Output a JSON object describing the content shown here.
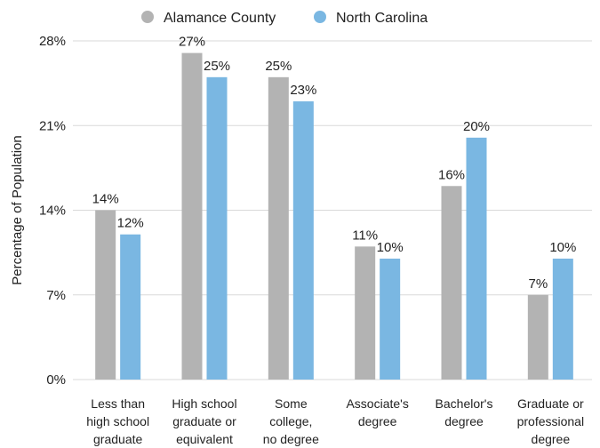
{
  "chart_data": {
    "type": "bar",
    "ylabel": "Percentage of Population",
    "ylim": [
      0,
      28
    ],
    "yticks": [
      0,
      7,
      14,
      21,
      28
    ],
    "ytick_labels": [
      "0%",
      "7%",
      "14%",
      "21%",
      "28%"
    ],
    "grid": true,
    "legend_position": "top-center",
    "categories": [
      [
        "Less than",
        "high school",
        "graduate"
      ],
      [
        "High school",
        "graduate or",
        "equivalent"
      ],
      [
        "Some",
        "college,",
        "no degree"
      ],
      [
        "Associate's",
        "degree"
      ],
      [
        "Bachelor's",
        "degree"
      ],
      [
        "Graduate or",
        "professional",
        "degree"
      ]
    ],
    "series": [
      {
        "name": "Alamance County",
        "color": "#b3b3b3",
        "values": [
          14,
          27,
          25,
          11,
          16,
          7
        ],
        "labels": [
          "14%",
          "27%",
          "25%",
          "11%",
          "16%",
          "7%"
        ]
      },
      {
        "name": "North Carolina",
        "color": "#7ab7e2",
        "values": [
          12,
          25,
          23,
          10,
          20,
          10
        ],
        "labels": [
          "12%",
          "25%",
          "23%",
          "10%",
          "20%",
          "10%"
        ]
      }
    ]
  }
}
